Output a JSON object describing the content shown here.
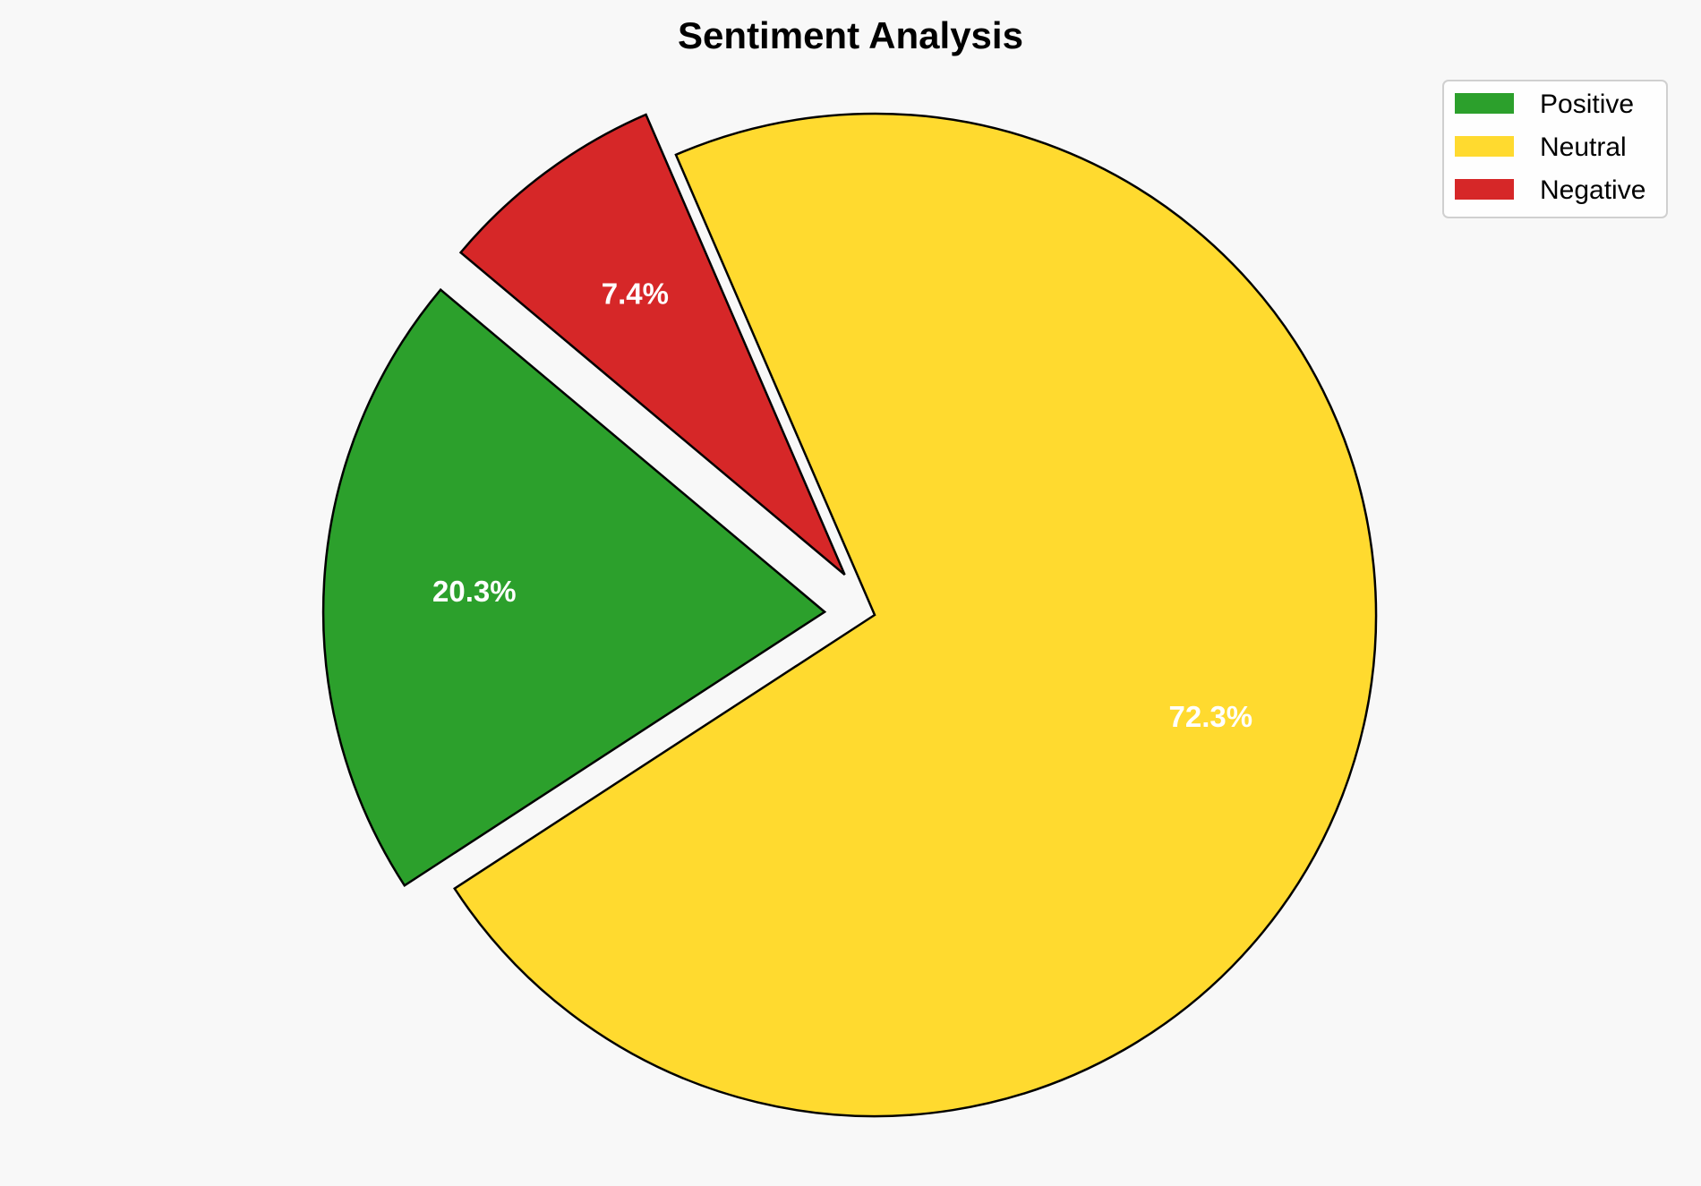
{
  "chart_data": {
    "type": "pie",
    "title": "Sentiment Analysis",
    "categories": [
      "Positive",
      "Neutral",
      "Negative"
    ],
    "values": [
      20.3,
      72.3,
      7.4
    ],
    "labels": [
      "20.3%",
      "72.3%",
      "7.4%"
    ],
    "colors": [
      "#2ca02c",
      "#ffda2f",
      "#d62728"
    ],
    "explode": [
      0.1,
      0,
      0.1
    ],
    "start_angle": 140,
    "direction": "counterclockwise",
    "edge_color": "#000000",
    "legend_placement": "top-right",
    "background": "#f8f8f8"
  }
}
